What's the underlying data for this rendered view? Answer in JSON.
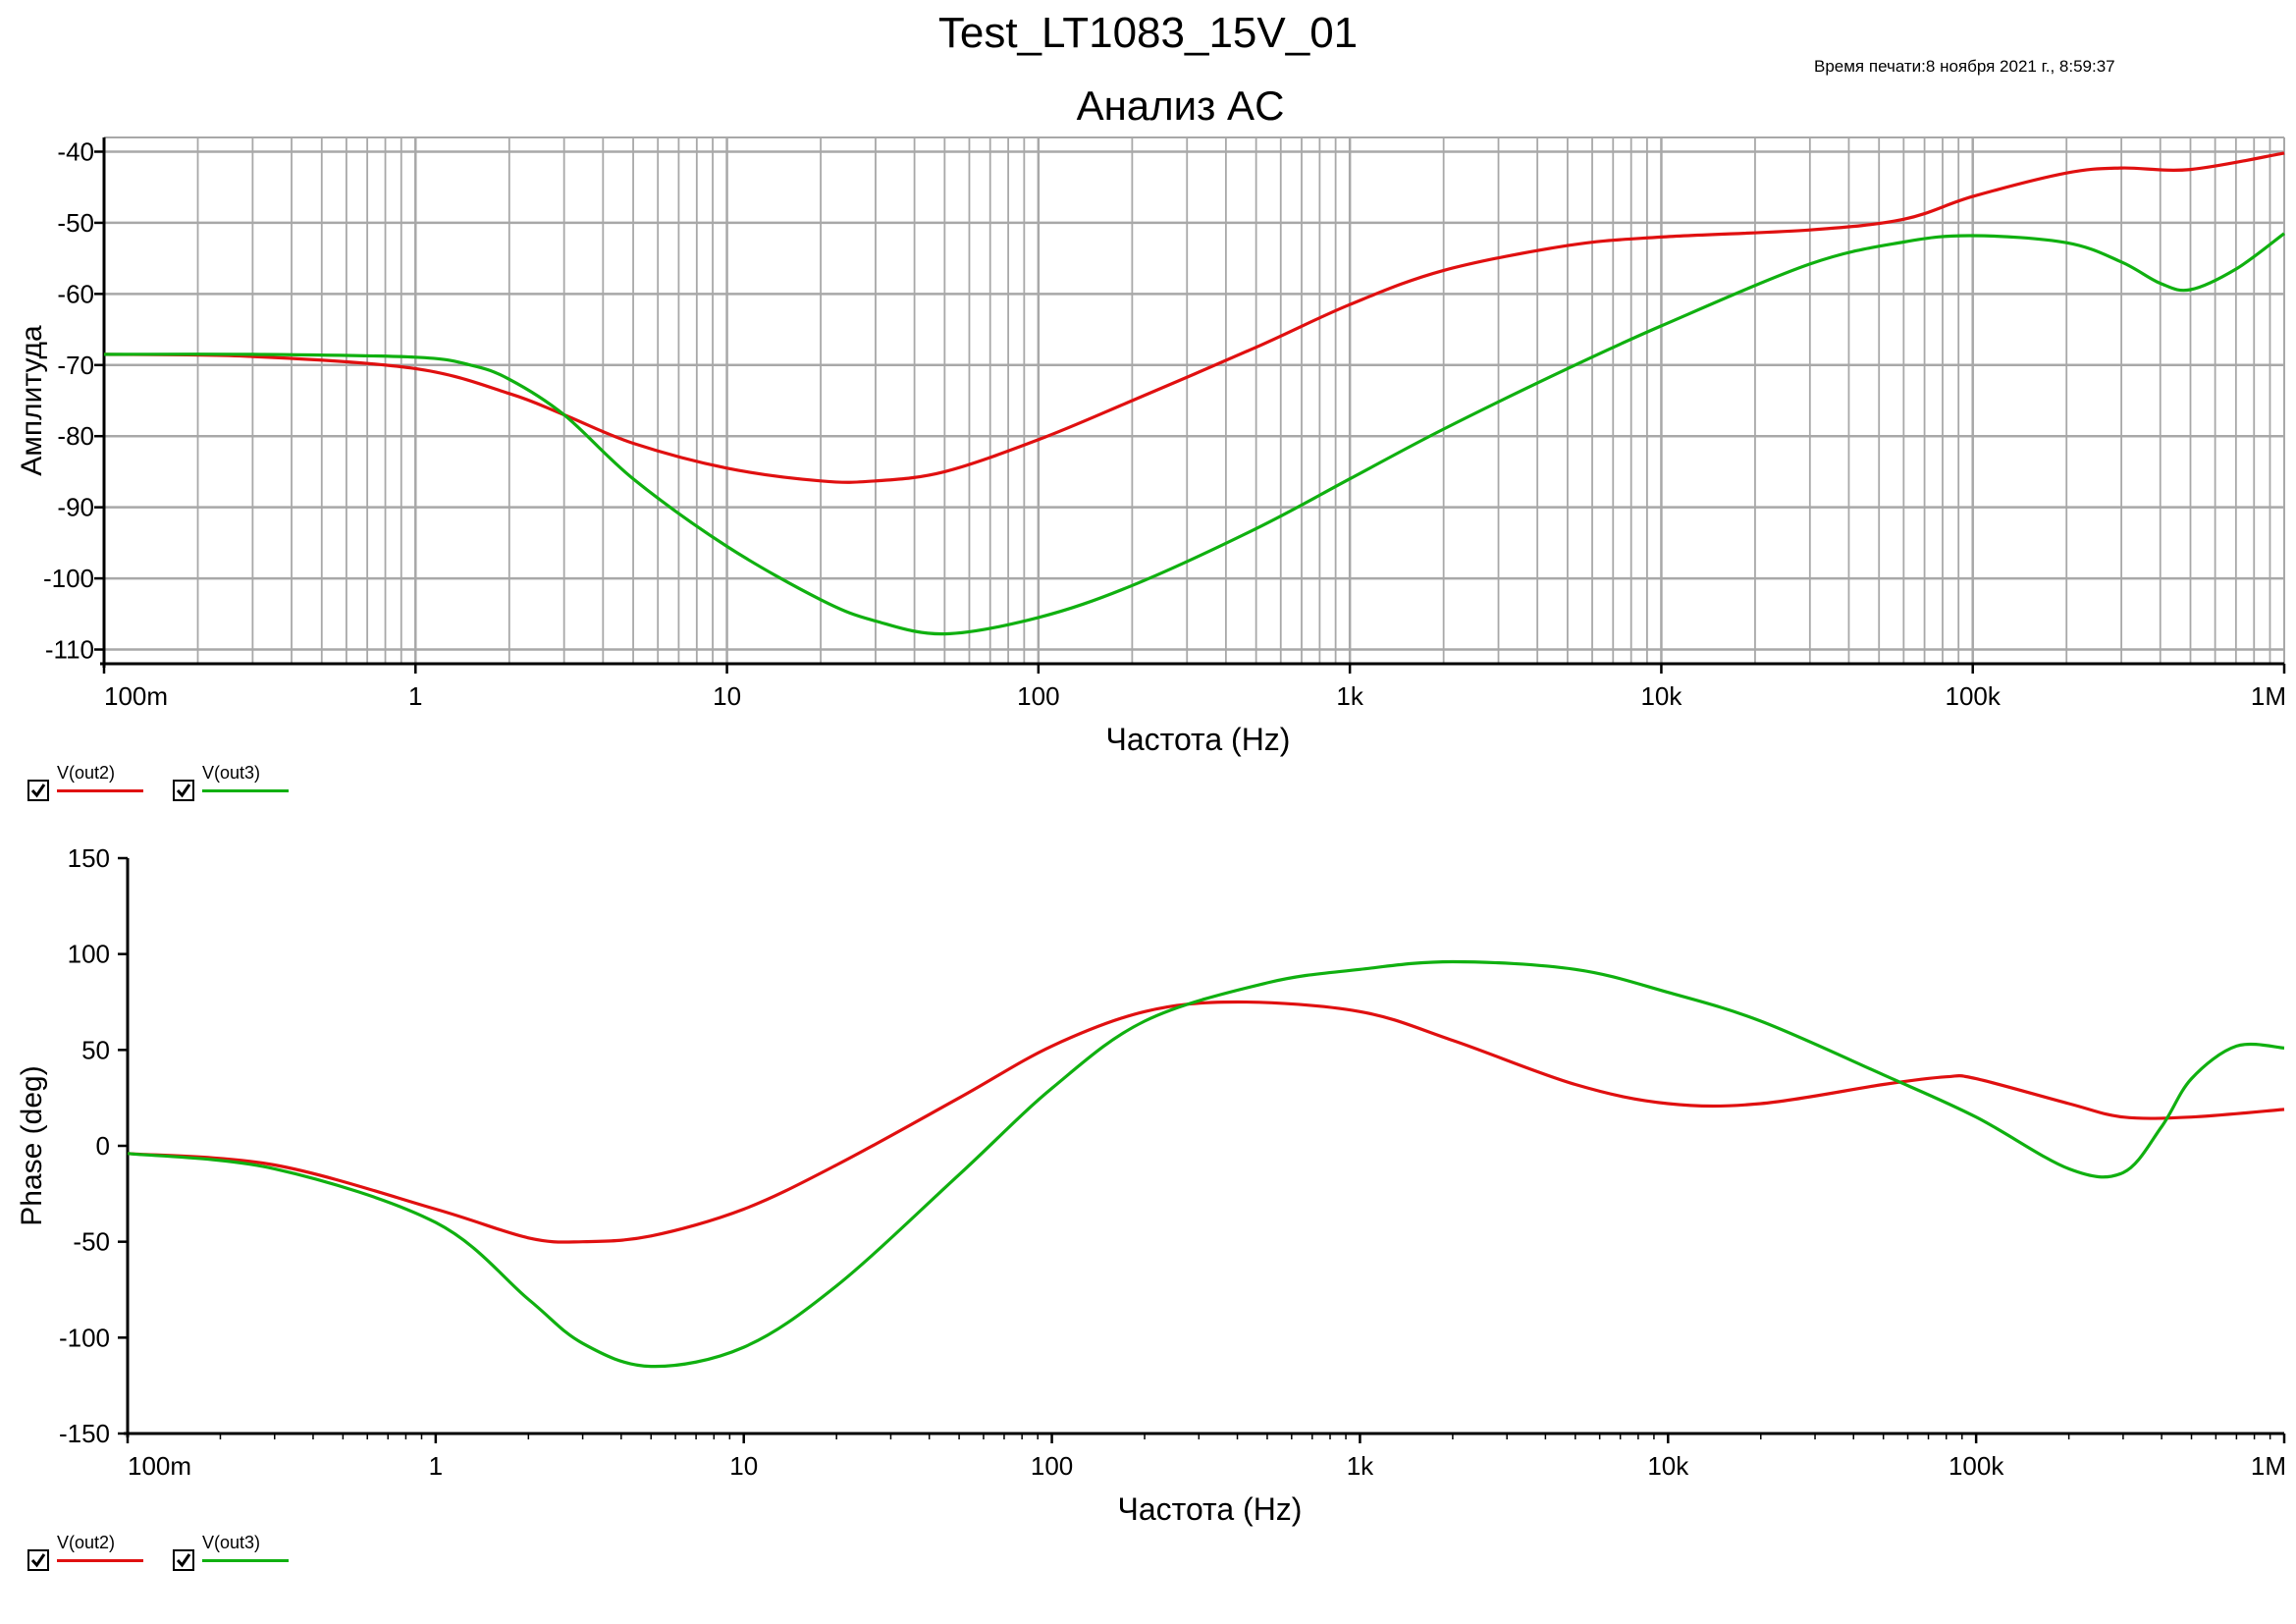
{
  "document": {
    "title": "Test_LT1083_15V_01",
    "print_time": "Время печати:8 ноября 2021 г., 8:59:37"
  },
  "colors": {
    "out2": "#e01010",
    "out3": "#10b010",
    "grid": "#a8a8a8",
    "axis": "#000000"
  },
  "legend_top": {
    "items": [
      {
        "label": "V(out2)",
        "checked": true,
        "color": "#e01010"
      },
      {
        "label": "V(out3)",
        "checked": true,
        "color": "#10b010"
      }
    ]
  },
  "legend_bottom": {
    "items": [
      {
        "label": "V(out2)",
        "checked": true,
        "color": "#e01010"
      },
      {
        "label": "V(out3)",
        "checked": true,
        "color": "#10b010"
      }
    ]
  },
  "chart_data": [
    {
      "type": "line",
      "title": "Анализ AC",
      "xlabel": "Частота (Hz)",
      "ylabel": "Амплитуда",
      "x_scale": "log",
      "xlim": [
        0.1,
        1000000
      ],
      "ylim": [
        -112,
        -38
      ],
      "grid": true,
      "x_tick_labels": [
        "100m",
        "1",
        "10",
        "100",
        "1k",
        "10k",
        "100k",
        "1M"
      ],
      "y_ticks": [
        -40,
        -50,
        -60,
        -70,
        -80,
        -90,
        -100,
        -110
      ],
      "series": [
        {
          "name": "V(out2)",
          "color": "#e01010",
          "x": [
            0.1,
            0.3,
            1,
            2,
            3,
            5,
            10,
            20,
            30,
            50,
            100,
            200,
            500,
            1000,
            2000,
            5000,
            10000,
            30000,
            60000,
            100000,
            200000,
            300000,
            500000,
            1000000
          ],
          "y": [
            -68.5,
            -68.8,
            -70.5,
            -74,
            -77,
            -81,
            -84.5,
            -86.3,
            -86.3,
            -85,
            -80.5,
            -75,
            -67.5,
            -61.5,
            -56.7,
            -53.2,
            -52,
            -51,
            -49.5,
            -46.3,
            -43,
            -42.3,
            -42.5,
            -40.2
          ]
        },
        {
          "name": "V(out3)",
          "color": "#10b010",
          "x": [
            0.1,
            0.3,
            1,
            1.5,
            2,
            3,
            5,
            10,
            20,
            30,
            50,
            100,
            200,
            500,
            1000,
            2000,
            5000,
            10000,
            30000,
            60000,
            100000,
            200000,
            300000,
            400000,
            500000,
            700000,
            1000000
          ],
          "y": [
            -68.5,
            -68.5,
            -68.9,
            -70,
            -72,
            -77,
            -86,
            -95.5,
            -103,
            -106,
            -107.8,
            -105.5,
            -101,
            -93,
            -86,
            -79,
            -70.5,
            -64.5,
            -55.8,
            -52.7,
            -51.8,
            -52.8,
            -55.5,
            -58.5,
            -59.4,
            -56.5,
            -51.5
          ]
        }
      ]
    },
    {
      "type": "line",
      "title": "",
      "xlabel": "Частота (Hz)",
      "ylabel": "Phase (deg)",
      "x_scale": "log",
      "xlim": [
        0.1,
        1000000
      ],
      "ylim": [
        -150,
        150
      ],
      "grid": false,
      "x_tick_labels": [
        "100m",
        "1",
        "10",
        "100",
        "1k",
        "10k",
        "100k",
        "1M"
      ],
      "y_ticks": [
        150,
        100,
        50,
        0,
        -50,
        -100,
        -150
      ],
      "series": [
        {
          "name": "V(out2)",
          "color": "#e01010",
          "x": [
            0.1,
            0.3,
            1,
            2,
            3,
            5,
            10,
            20,
            50,
            100,
            200,
            400,
            1000,
            2000,
            5000,
            10000,
            20000,
            50000,
            80000,
            100000,
            200000,
            300000,
            500000,
            1000000
          ],
          "y": [
            -4,
            -10,
            -33,
            -48,
            -50,
            -47,
            -33,
            -10,
            25,
            52,
            70,
            75,
            70,
            55,
            32,
            22,
            22,
            32,
            36,
            35,
            22,
            15,
            15,
            19
          ]
        },
        {
          "name": "V(out3)",
          "color": "#10b010",
          "x": [
            0.1,
            0.3,
            1,
            2,
            3,
            5,
            10,
            20,
            50,
            100,
            200,
            500,
            1000,
            2000,
            5000,
            10000,
            20000,
            50000,
            100000,
            200000,
            300000,
            400000,
            500000,
            700000,
            1000000
          ],
          "y": [
            -4,
            -12,
            -40,
            -80,
            -103,
            -115,
            -105,
            -73,
            -15,
            30,
            65,
            85,
            92,
            96,
            92,
            80,
            65,
            37,
            15,
            -12,
            -14,
            10,
            35,
            52,
            51
          ]
        }
      ]
    }
  ]
}
